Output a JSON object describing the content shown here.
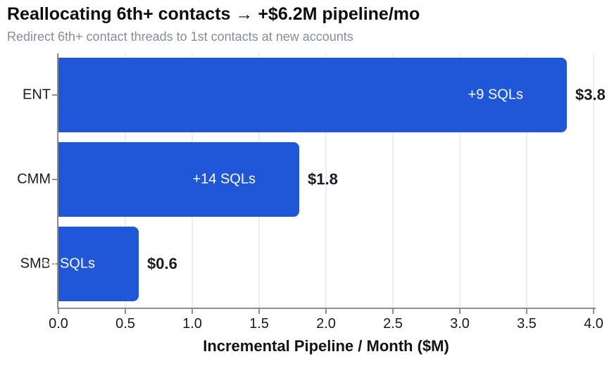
{
  "header": {
    "title": "Reallocating 6th+ contacts → +$6.2M pipeline/mo",
    "subtitle": "Redirect 6th+ contact threads to 1st contacts at new accounts"
  },
  "chart_data": {
    "type": "bar",
    "orientation": "horizontal",
    "categories": [
      "ENT",
      "CMM",
      "SMB"
    ],
    "values": [
      3.8,
      1.8,
      0.6
    ],
    "series": [
      {
        "name": "Incremental Pipeline / Month ($M)",
        "values": [
          3.8,
          1.8,
          0.6
        ]
      }
    ],
    "bar_labels": [
      "+9 SQLs",
      "+14 SQLs",
      "+6 SQLs"
    ],
    "value_labels": [
      "$3.8",
      "$1.8",
      "$0.6"
    ],
    "title": "Reallocating 6th+ contacts → +$6.2M pipeline/mo",
    "subtitle": "Redirect 6th+ contact threads to 1st contacts at new accounts",
    "xlabel": "Incremental Pipeline / Month ($M)",
    "ylabel": "",
    "xticks": [
      "0.0",
      "0.5",
      "1.0",
      "1.5",
      "2.0",
      "2.5",
      "3.0",
      "3.5",
      "4.0"
    ],
    "xtick_values": [
      0.0,
      0.5,
      1.0,
      1.5,
      2.0,
      2.5,
      3.0,
      3.5,
      4.0
    ],
    "xlim": [
      0.0,
      4.0
    ],
    "grid": true,
    "legend": false,
    "colors": {
      "bar": "#1f57d8",
      "bar_label": "#ffffff",
      "value_label": "#181c24",
      "axis": "#8f8f8f",
      "gridline": "#ededf1",
      "tick_label": "#1a1a1a",
      "title": "#0b0e14",
      "subtitle": "#848e9c"
    }
  }
}
